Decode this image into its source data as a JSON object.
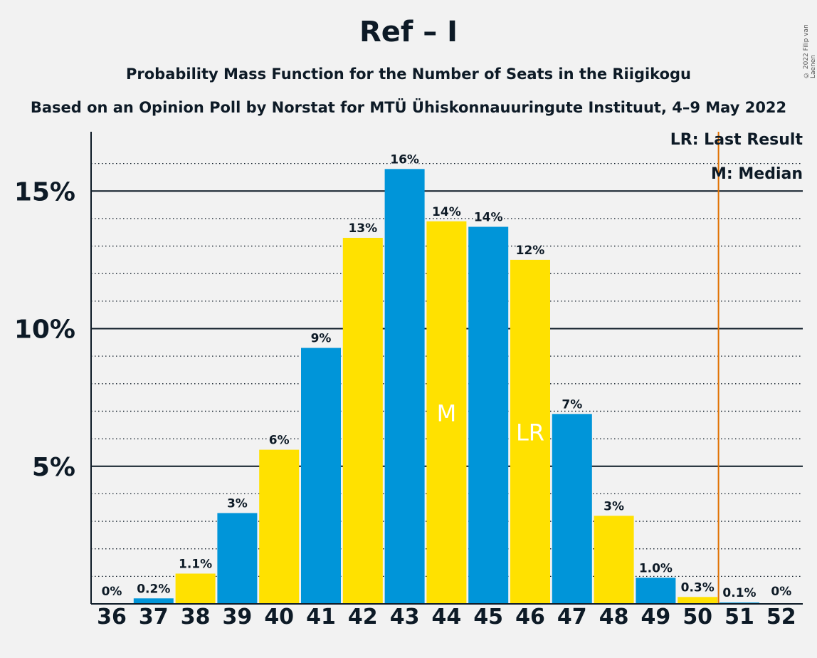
{
  "title": "Ref – I",
  "subtitle": "Probability Mass Function for the Number of Seats in the Riigikogu",
  "subtitle2": "Based on an Opinion Poll by Norstat for MTÜ Ühiskonnauuringute Instituut, 4–9 May 2022",
  "copyright": "© 2022 Filip van Laenen",
  "legend": {
    "last_result": "LR: Last Result",
    "median": "M: Median"
  },
  "colors": {
    "blue": "#0095d9",
    "yellow": "#ffe100",
    "last_result_line": "#e07000",
    "text": "#0d1a26"
  },
  "chart_data": {
    "type": "bar",
    "categories": [
      "36",
      "37",
      "38",
      "39",
      "40",
      "41",
      "42",
      "43",
      "44",
      "45",
      "46",
      "47",
      "48",
      "49",
      "50",
      "51",
      "52"
    ],
    "values": [
      0,
      0.2,
      1.1,
      3.3,
      5.6,
      9.3,
      13.3,
      15.8,
      13.9,
      13.7,
      12.5,
      6.9,
      3.2,
      0.95,
      0.25,
      0.05,
      0
    ],
    "labels": [
      "0%",
      "0.2%",
      "1.1%",
      "3%",
      "6%",
      "9%",
      "13%",
      "16%",
      "14%",
      "14%",
      "12%",
      "7%",
      "3%",
      "1.0%",
      "0.3%",
      "0.1%",
      "0%"
    ],
    "bar_colors": [
      "blue",
      "blue",
      "yellow",
      "blue",
      "yellow",
      "blue",
      "yellow",
      "blue",
      "yellow",
      "blue",
      "yellow",
      "blue",
      "yellow",
      "blue",
      "yellow",
      "blue",
      "yellow"
    ],
    "ylim": [
      0,
      17
    ],
    "yticks": [
      5,
      10,
      15
    ],
    "ytick_labels": [
      "5%",
      "10%",
      "15%"
    ],
    "minor_grid_step": 1,
    "median": {
      "seats": "44",
      "marker": "M"
    },
    "last_result": {
      "seats": "46",
      "marker": "LR"
    },
    "majority_line_after": "50"
  }
}
